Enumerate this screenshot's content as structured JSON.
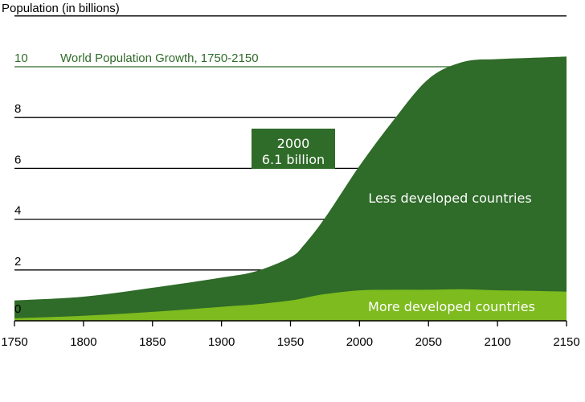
{
  "chart_data": {
    "type": "area",
    "stacked": true,
    "title": "World Population Growth, 1750-2150",
    "ylabel": "Population (in billions)",
    "xlabel": "",
    "xlim": [
      1750,
      2150
    ],
    "ylim": [
      0,
      12
    ],
    "x_ticks": [
      "1750",
      "1800",
      "1850",
      "1900",
      "1950",
      "2000",
      "2050",
      "2100",
      "2150"
    ],
    "y_ticks": [
      "0",
      "2",
      "4",
      "6",
      "8",
      "10"
    ],
    "grid": "horizontal",
    "series": [
      {
        "name": "More developed countries",
        "color": "#7dbb1e",
        "x": [
          1750,
          1800,
          1850,
          1900,
          1925,
          1950,
          1960,
          1975,
          2000,
          2025,
          2050,
          2075,
          2100,
          2125,
          2150
        ],
        "values": [
          0.1,
          0.2,
          0.35,
          0.55,
          0.65,
          0.8,
          0.9,
          1.05,
          1.2,
          1.22,
          1.22,
          1.24,
          1.2,
          1.18,
          1.15
        ]
      },
      {
        "name": "Less developed countries",
        "color": "#2f6b29",
        "x": [
          1750,
          1800,
          1850,
          1900,
          1925,
          1950,
          1960,
          1975,
          2000,
          2025,
          2050,
          2075,
          2100,
          2125,
          2150
        ],
        "values": [
          0.7,
          0.75,
          0.95,
          1.15,
          1.3,
          1.7,
          2.1,
          3.0,
          4.9,
          6.7,
          8.3,
          8.95,
          9.1,
          9.17,
          9.25
        ]
      }
    ],
    "annotation": {
      "year_label": "2000",
      "value_label": "6.1 billion"
    },
    "colors": {
      "title": "#2f6b29",
      "tick_10": "#2f6b29",
      "annotation_box": "#2f6b29"
    }
  }
}
